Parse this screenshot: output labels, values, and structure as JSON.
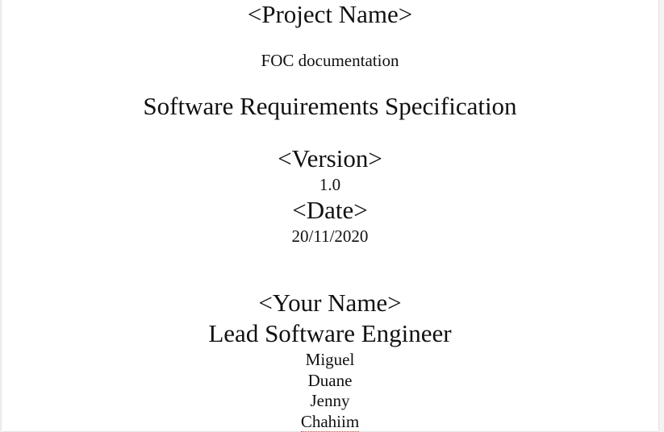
{
  "cover": {
    "project_name_placeholder": "<Project Name>",
    "project_subtitle": "FOC documentation",
    "document_title": "Software Requirements Specification",
    "version_label": "<Version>",
    "version_value": "1.0",
    "date_label": "<Date>",
    "date_value": "20/11/2020",
    "name_label": "<Your Name>",
    "role": "Lead Software Engineer",
    "members": [
      "Miguel",
      "Duane",
      "Jenny",
      "Chahiim"
    ]
  }
}
